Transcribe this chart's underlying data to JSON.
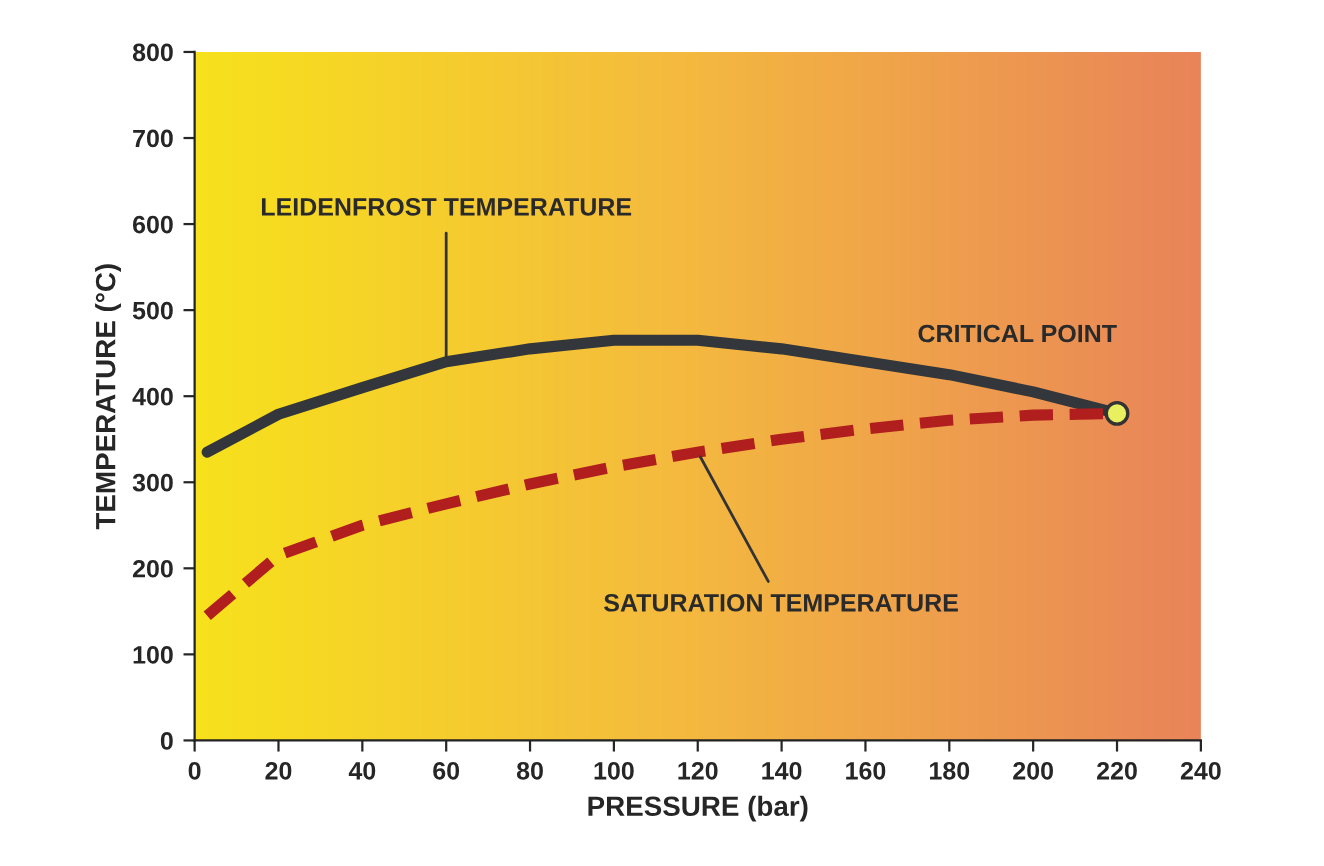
{
  "chart_data": {
    "type": "line",
    "xlabel": "PRESSURE (bar)",
    "ylabel": "TEMPERATURE (°C)",
    "xlim": [
      0,
      240
    ],
    "xticks": [
      0,
      20,
      40,
      60,
      80,
      100,
      120,
      140,
      160,
      180,
      200,
      220,
      240
    ],
    "ylim": [
      0,
      800
    ],
    "yticks": [
      0,
      100,
      200,
      300,
      400,
      500,
      600,
      700,
      800
    ],
    "grid": false,
    "legend": false,
    "series": [
      {
        "color": "#33363a",
        "line_style": "solid",
        "marker": "none",
        "x": [
          3,
          20,
          40,
          60,
          80,
          100,
          120,
          140,
          160,
          180,
          200,
          220
        ],
        "values": [
          335,
          379,
          410,
          440,
          455,
          465,
          465,
          455,
          440,
          425,
          405,
          380
        ]
      },
      {
        "color": "#b01e1e",
        "line_style": "dashed",
        "marker": "none",
        "x": [
          3,
          20,
          40,
          60,
          80,
          100,
          120,
          140,
          160,
          180,
          200,
          220
        ],
        "values": [
          145,
          215,
          250,
          275,
          298,
          318,
          335,
          350,
          362,
          372,
          378,
          380
        ]
      },
      {
        "type": "scatter",
        "color": "#e8f060",
        "marker": "circle",
        "x": [
          220
        ],
        "values": [
          380
        ]
      }
    ],
    "annotations": [
      {
        "text": "LEIDENFROST TEMPERATURE",
        "x": 60,
        "y": 440
      },
      {
        "text": "SATURATION TEMPERATURE",
        "x": 120,
        "y": 335
      },
      {
        "text": "CRITICAL POINT",
        "x": 220,
        "y": 380
      }
    ]
  }
}
